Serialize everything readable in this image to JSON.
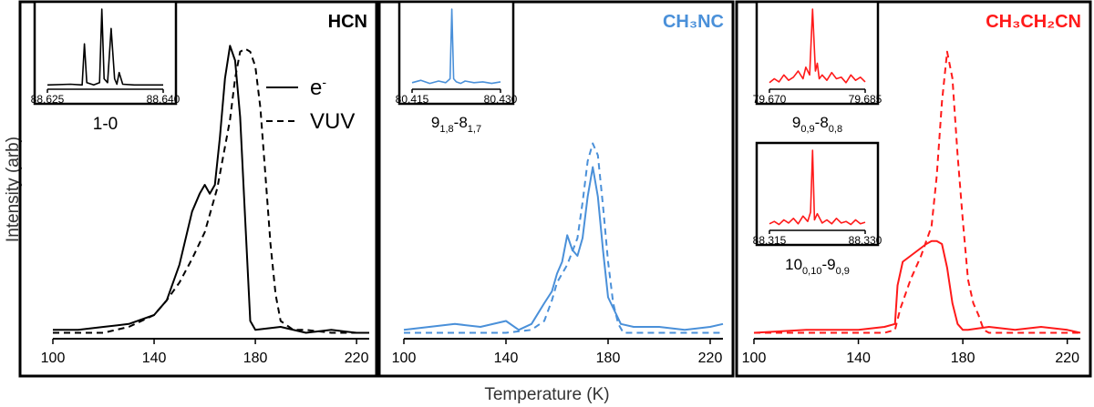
{
  "figure": {
    "ylabel": "Intensity (arb)",
    "xlabel": "Temperature (K)"
  },
  "legend": {
    "solid_label": "e",
    "solid_sup": "-",
    "dashed_label": "VUV"
  },
  "chart_data": [
    {
      "type": "line",
      "title": "HCN",
      "title_color": "#000000",
      "line_color": "#000000",
      "xlim": [
        100,
        225
      ],
      "xticks": [
        100,
        140,
        180,
        220
      ],
      "series": [
        {
          "name": "e-",
          "dash": false,
          "x": [
            100,
            110,
            120,
            130,
            140,
            145,
            150,
            155,
            158,
            160,
            162,
            164,
            166,
            168,
            170,
            172,
            174,
            176,
            178,
            180,
            190,
            200,
            210,
            220,
            225
          ],
          "y": [
            0.03,
            0.03,
            0.04,
            0.05,
            0.08,
            0.13,
            0.25,
            0.43,
            0.49,
            0.52,
            0.49,
            0.52,
            0.68,
            0.88,
            0.99,
            0.94,
            0.75,
            0.4,
            0.06,
            0.03,
            0.04,
            0.02,
            0.03,
            0.02,
            0.02
          ]
        },
        {
          "name": "VUV",
          "dash": true,
          "x": [
            100,
            120,
            130,
            140,
            145,
            150,
            155,
            160,
            165,
            170,
            172,
            174,
            176,
            178,
            180,
            182,
            184,
            186,
            188,
            190,
            195,
            200,
            210,
            220,
            225
          ],
          "y": [
            0.02,
            0.02,
            0.04,
            0.08,
            0.13,
            0.19,
            0.27,
            0.36,
            0.51,
            0.74,
            0.88,
            0.97,
            0.98,
            0.97,
            0.92,
            0.78,
            0.55,
            0.32,
            0.15,
            0.06,
            0.03,
            0.03,
            0.02,
            0.02,
            0.02
          ]
        }
      ],
      "insets": [
        {
          "type": "line",
          "label": "1-0",
          "xmin": "88.625",
          "xmax": "88.640",
          "x": [
            0,
            0.2,
            0.3,
            0.32,
            0.34,
            0.4,
            0.45,
            0.47,
            0.49,
            0.52,
            0.55,
            0.58,
            0.6,
            0.62,
            0.65,
            0.75,
            0.85,
            1
          ],
          "y": [
            0.02,
            0.03,
            0.02,
            0.55,
            0.05,
            0.02,
            0.05,
            1.0,
            0.1,
            0.05,
            0.75,
            0.1,
            0.03,
            0.18,
            0.03,
            0.02,
            0.02,
            0.02
          ]
        }
      ]
    },
    {
      "type": "line",
      "title": "CH₃NC",
      "title_color": "#4a90d9",
      "line_color": "#4a90d9",
      "xlim": [
        100,
        225
      ],
      "xticks": [
        100,
        140,
        180,
        220
      ],
      "series": [
        {
          "name": "e-",
          "dash": false,
          "x": [
            100,
            110,
            120,
            130,
            140,
            145,
            150,
            155,
            158,
            160,
            162,
            164,
            166,
            168,
            170,
            172,
            174,
            176,
            178,
            180,
            185,
            190,
            200,
            210,
            220,
            225
          ],
          "y": [
            0.03,
            0.04,
            0.05,
            0.04,
            0.06,
            0.03,
            0.05,
            0.12,
            0.16,
            0.22,
            0.26,
            0.35,
            0.3,
            0.28,
            0.34,
            0.48,
            0.58,
            0.48,
            0.3,
            0.14,
            0.05,
            0.04,
            0.04,
            0.03,
            0.04,
            0.05
          ]
        },
        {
          "name": "VUV",
          "dash": true,
          "x": [
            100,
            120,
            140,
            150,
            155,
            158,
            160,
            164,
            168,
            170,
            172,
            174,
            176,
            178,
            180,
            182,
            184,
            186,
            190,
            200,
            225
          ],
          "y": [
            0.02,
            0.02,
            0.02,
            0.03,
            0.06,
            0.13,
            0.19,
            0.25,
            0.34,
            0.46,
            0.6,
            0.66,
            0.62,
            0.45,
            0.26,
            0.12,
            0.05,
            0.02,
            0.02,
            0.02,
            0.02
          ]
        }
      ],
      "insets": [
        {
          "type": "line",
          "label_main": "9",
          "label_sub1": "1,8",
          "label_mid": "-8",
          "label_sub2": "1,7",
          "xmin": "80.415",
          "xmax": "80.430",
          "x": [
            0,
            0.1,
            0.2,
            0.3,
            0.38,
            0.43,
            0.45,
            0.47,
            0.5,
            0.55,
            0.6,
            0.7,
            0.8,
            0.9,
            1
          ],
          "y": [
            0.05,
            0.08,
            0.04,
            0.07,
            0.05,
            0.1,
            1.0,
            0.1,
            0.06,
            0.04,
            0.07,
            0.05,
            0.06,
            0.04,
            0.06
          ]
        }
      ]
    },
    {
      "type": "line",
      "title": "CH₃CH₂CN",
      "title_color": "#ff1a1a",
      "line_color": "#ff1a1a",
      "xlim": [
        100,
        225
      ],
      "xticks": [
        100,
        140,
        180,
        220
      ],
      "series": [
        {
          "name": "e-",
          "dash": false,
          "x": [
            100,
            120,
            140,
            150,
            154,
            155,
            157,
            160,
            163,
            166,
            168,
            170,
            172,
            174,
            176,
            178,
            180,
            182,
            190,
            200,
            210,
            220,
            225
          ],
          "y": [
            0.02,
            0.03,
            0.03,
            0.04,
            0.05,
            0.18,
            0.26,
            0.28,
            0.3,
            0.32,
            0.33,
            0.33,
            0.32,
            0.24,
            0.12,
            0.05,
            0.03,
            0.03,
            0.04,
            0.03,
            0.04,
            0.03,
            0.02
          ]
        },
        {
          "name": "VUV",
          "dash": true,
          "x": [
            100,
            120,
            140,
            150,
            154,
            156,
            160,
            164,
            168,
            170,
            172,
            174,
            176,
            178,
            180,
            182,
            184,
            186,
            188,
            190,
            200,
            225
          ],
          "y": [
            0.02,
            0.02,
            0.02,
            0.02,
            0.03,
            0.1,
            0.2,
            0.28,
            0.38,
            0.55,
            0.8,
            0.97,
            0.88,
            0.62,
            0.4,
            0.2,
            0.12,
            0.08,
            0.03,
            0.02,
            0.02,
            0.02
          ]
        }
      ],
      "insets": [
        {
          "type": "line",
          "label_main": "9",
          "label_sub1": "0,9",
          "label_mid": "-8",
          "label_sub2": "0,8",
          "xmin": "79.670",
          "xmax": "79.685",
          "x": [
            0,
            0.05,
            0.1,
            0.15,
            0.2,
            0.25,
            0.3,
            0.35,
            0.38,
            0.42,
            0.45,
            0.48,
            0.5,
            0.52,
            0.55,
            0.6,
            0.65,
            0.7,
            0.75,
            0.8,
            0.85,
            0.9,
            0.95,
            1
          ],
          "y": [
            0.05,
            0.1,
            0.06,
            0.15,
            0.08,
            0.12,
            0.2,
            0.1,
            0.25,
            0.15,
            1.0,
            0.2,
            0.3,
            0.1,
            0.15,
            0.08,
            0.18,
            0.1,
            0.12,
            0.05,
            0.15,
            0.08,
            0.12,
            0.06
          ]
        },
        {
          "type": "line",
          "label_main": "10",
          "label_sub1": "0,10",
          "label_mid": "-9",
          "label_sub2": "0,9",
          "xmin": "88.315",
          "xmax": "88.330",
          "x": [
            0,
            0.05,
            0.1,
            0.15,
            0.2,
            0.25,
            0.3,
            0.35,
            0.4,
            0.43,
            0.45,
            0.47,
            0.5,
            0.55,
            0.6,
            0.65,
            0.7,
            0.75,
            0.8,
            0.85,
            0.9,
            0.95,
            1
          ],
          "y": [
            0.05,
            0.08,
            0.04,
            0.1,
            0.06,
            0.12,
            0.05,
            0.15,
            0.08,
            0.2,
            1.0,
            0.1,
            0.18,
            0.06,
            0.1,
            0.05,
            0.12,
            0.06,
            0.08,
            0.04,
            0.1,
            0.05,
            0.07
          ]
        }
      ]
    }
  ]
}
